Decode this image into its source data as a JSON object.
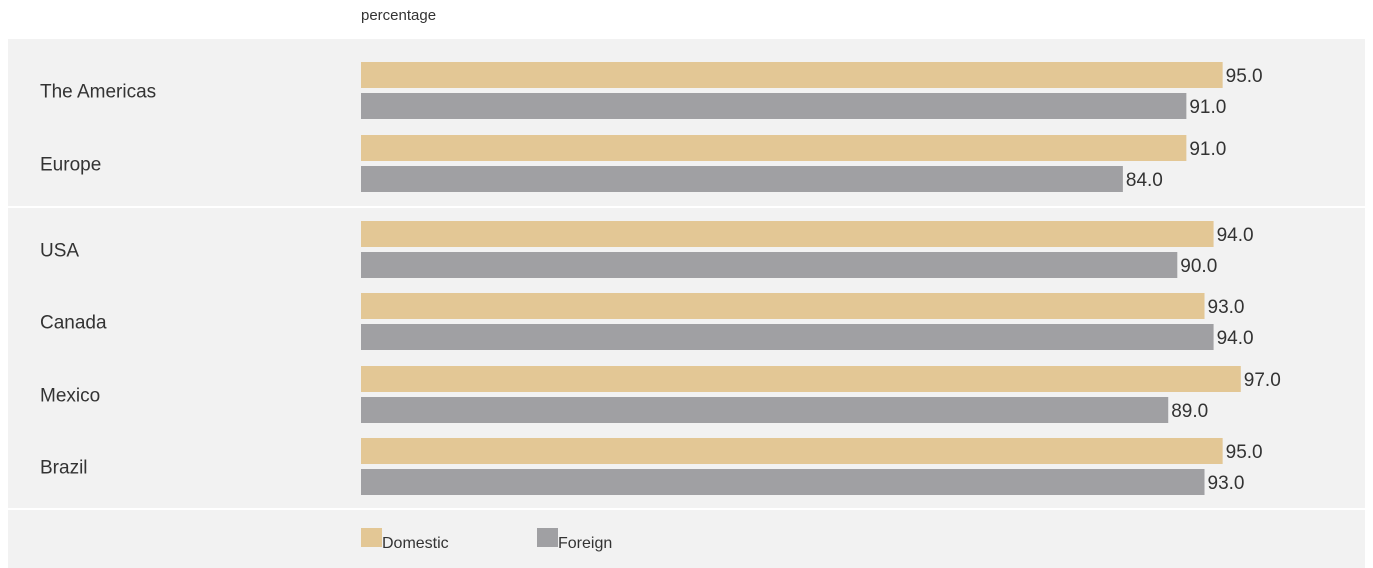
{
  "chart_data": {
    "type": "bar",
    "orientation": "horizontal",
    "unit_label": "percentage",
    "xlim": [
      0,
      100
    ],
    "grid": false,
    "legend_position": "bottom",
    "groups": [
      {
        "categories": [
          "The Americas",
          "Europe"
        ]
      },
      {
        "categories": [
          "USA",
          "Canada",
          "Mexico",
          "Brazil"
        ]
      }
    ],
    "categories": [
      "The Americas",
      "Europe",
      "USA",
      "Canada",
      "Mexico",
      "Brazil"
    ],
    "series": [
      {
        "name": "Domestic",
        "color": "#e3c795",
        "values": [
          95.0,
          91.0,
          94.0,
          93.0,
          97.0,
          95.0
        ]
      },
      {
        "name": "Foreign",
        "color": "#a0a0a3",
        "values": [
          91.0,
          84.0,
          90.0,
          94.0,
          89.0,
          93.0
        ]
      }
    ],
    "panel_color": "#f2f2f2"
  }
}
